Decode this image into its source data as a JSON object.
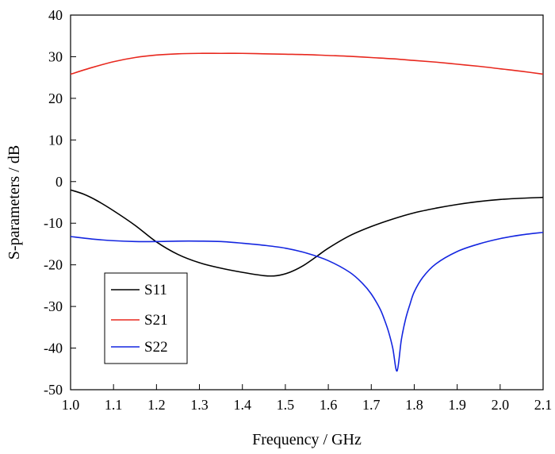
{
  "chart_data": {
    "type": "line",
    "xlabel": "Frequency / GHz",
    "ylabel": "S-parameters / dB",
    "xlim": [
      1.0,
      2.1
    ],
    "ylim": [
      -50,
      40
    ],
    "xticks": [
      1.0,
      1.1,
      1.2,
      1.3,
      1.4,
      1.5,
      1.6,
      1.7,
      1.8,
      1.9,
      2.0,
      2.1
    ],
    "xtick_labels": [
      "1.0",
      "1.1",
      "1.2",
      "1.3",
      "1.4",
      "1.5",
      "1.6",
      "1.7",
      "1.8",
      "1.9",
      "2.0",
      "2.1"
    ],
    "yticks": [
      40,
      30,
      20,
      10,
      0,
      -10,
      -20,
      -30,
      -40,
      -50
    ],
    "ytick_labels": [
      "40",
      "30",
      "20",
      "10",
      "0",
      "-10",
      "-20",
      "-30",
      "-40",
      "-50"
    ],
    "grid": false,
    "legend_position": "bottom-left",
    "series": [
      {
        "name": "S11",
        "color": "#000000",
        "x": [
          1.0,
          1.03,
          1.06,
          1.1,
          1.15,
          1.2,
          1.25,
          1.3,
          1.35,
          1.4,
          1.45,
          1.48,
          1.51,
          1.54,
          1.57,
          1.6,
          1.65,
          1.7,
          1.75,
          1.8,
          1.85,
          1.9,
          1.95,
          2.0,
          2.05,
          2.1
        ],
        "y": [
          -2.0,
          -3.0,
          -4.5,
          -7.0,
          -10.5,
          -14.5,
          -17.5,
          -19.5,
          -20.8,
          -21.8,
          -22.6,
          -22.6,
          -21.8,
          -20.3,
          -18.2,
          -16.0,
          -13.0,
          -10.8,
          -9.0,
          -7.5,
          -6.4,
          -5.5,
          -4.8,
          -4.3,
          -4.0,
          -3.8
        ]
      },
      {
        "name": "S21",
        "color": "#e8281e",
        "x": [
          1.0,
          1.05,
          1.1,
          1.15,
          1.2,
          1.25,
          1.3,
          1.35,
          1.4,
          1.45,
          1.5,
          1.55,
          1.6,
          1.65,
          1.7,
          1.75,
          1.8,
          1.85,
          1.9,
          1.95,
          2.0,
          2.05,
          2.1
        ],
        "y": [
          25.8,
          27.4,
          28.8,
          29.8,
          30.4,
          30.7,
          30.8,
          30.8,
          30.8,
          30.7,
          30.6,
          30.5,
          30.3,
          30.1,
          29.8,
          29.5,
          29.1,
          28.7,
          28.2,
          27.7,
          27.1,
          26.5,
          25.8
        ]
      },
      {
        "name": "S22",
        "color": "#1426e0",
        "x": [
          1.0,
          1.05,
          1.1,
          1.15,
          1.2,
          1.25,
          1.3,
          1.35,
          1.4,
          1.45,
          1.5,
          1.55,
          1.6,
          1.65,
          1.68,
          1.7,
          1.72,
          1.73,
          1.74,
          1.75,
          1.76,
          1.77,
          1.78,
          1.79,
          1.8,
          1.82,
          1.85,
          1.9,
          1.95,
          2.0,
          2.05,
          2.1
        ],
        "y": [
          -13.2,
          -13.8,
          -14.2,
          -14.4,
          -14.4,
          -14.3,
          -14.3,
          -14.4,
          -14.8,
          -15.3,
          -16.0,
          -17.2,
          -19.0,
          -21.8,
          -24.5,
          -27.0,
          -30.5,
          -33.0,
          -36.0,
          -40.0,
          -45.5,
          -38.0,
          -33.0,
          -29.5,
          -26.5,
          -23.0,
          -19.8,
          -16.8,
          -15.0,
          -13.7,
          -12.8,
          -12.2
        ]
      }
    ]
  }
}
